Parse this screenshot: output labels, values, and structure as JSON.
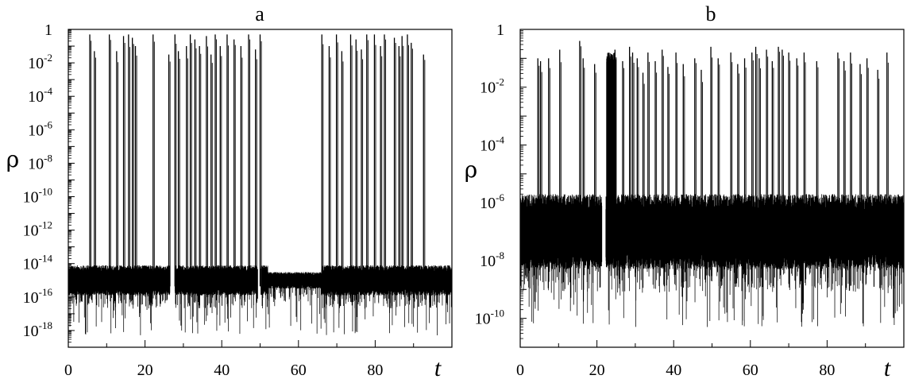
{
  "chart_data": [
    {
      "type": "line",
      "title": "a",
      "xlabel": "t",
      "ylabel": "ρ",
      "xlim": [
        0,
        100
      ],
      "ylim": [
        1e-19,
        1
      ],
      "yscale": "log",
      "grid": false,
      "x_ticks": [
        0,
        20,
        40,
        60,
        80
      ],
      "x_tick_labels": [
        "0",
        "20",
        "40",
        "60",
        "80"
      ],
      "y_ticks": [
        {
          "base": "10",
          "exp": "-18",
          "value": 1e-18
        },
        {
          "base": "10",
          "exp": "-16",
          "value": 1e-16
        },
        {
          "base": "10",
          "exp": "-14",
          "value": 1e-14
        },
        {
          "base": "10",
          "exp": "-12",
          "value": 1e-12
        },
        {
          "base": "10",
          "exp": "-10",
          "value": 1e-10
        },
        {
          "base": "10",
          "exp": "-8",
          "value": 1e-08
        },
        {
          "base": "10",
          "exp": "-6",
          "value": 1e-06
        },
        {
          "base": "10",
          "exp": "-4",
          "value": 0.0001
        },
        {
          "base": "10",
          "exp": "-2",
          "value": 0.01
        },
        {
          "base": "1",
          "exp": "",
          "value": 1
        }
      ],
      "baseline": {
        "center_exp": -15.0,
        "half_width_exp": 0.9,
        "lower_tail_exp": -18.3,
        "upper_edge_exp": -13.8
      },
      "quiet_intervals": [
        [
          52,
          66
        ]
      ],
      "gaps": [
        [
          26.5,
          27.8
        ],
        [
          49.4,
          50.2
        ]
      ],
      "bursts": [
        {
          "t": 5.6,
          "peak_exp": -0.3
        },
        {
          "t": 6.8,
          "peak_exp": -1.3
        },
        {
          "t": 10.7,
          "peak_exp": -0.3
        },
        {
          "t": 12.6,
          "peak_exp": -1.3
        },
        {
          "t": 14.4,
          "peak_exp": -0.4
        },
        {
          "t": 15.7,
          "peak_exp": -0.3
        },
        {
          "t": 16.7,
          "peak_exp": -0.5
        },
        {
          "t": 17.5,
          "peak_exp": -1.0
        },
        {
          "t": 22.1,
          "peak_exp": -0.3
        },
        {
          "t": 26.2,
          "peak_exp": -1.5
        },
        {
          "t": 27.8,
          "peak_exp": -0.3
        },
        {
          "t": 28.7,
          "peak_exp": -1.3
        },
        {
          "t": 30.8,
          "peak_exp": -1.0
        },
        {
          "t": 31.8,
          "peak_exp": -0.3
        },
        {
          "t": 33.0,
          "peak_exp": -0.6
        },
        {
          "t": 34.2,
          "peak_exp": -1.0
        },
        {
          "t": 36.0,
          "peak_exp": -0.4
        },
        {
          "t": 37.2,
          "peak_exp": -1.5
        },
        {
          "t": 38.3,
          "peak_exp": -0.3
        },
        {
          "t": 39.6,
          "peak_exp": -1.0
        },
        {
          "t": 41.4,
          "peak_exp": -0.3
        },
        {
          "t": 43.2,
          "peak_exp": -0.6
        },
        {
          "t": 45.0,
          "peak_exp": -1.0
        },
        {
          "t": 47.0,
          "peak_exp": -0.3
        },
        {
          "t": 48.8,
          "peak_exp": -1.2
        },
        {
          "t": 50.0,
          "peak_exp": -0.3
        },
        {
          "t": 66.1,
          "peak_exp": -0.3
        },
        {
          "t": 68.0,
          "peak_exp": -1.0
        },
        {
          "t": 69.9,
          "peak_exp": -0.3
        },
        {
          "t": 71.3,
          "peak_exp": -1.3
        },
        {
          "t": 73.6,
          "peak_exp": -0.3
        },
        {
          "t": 75.0,
          "peak_exp": -0.6
        },
        {
          "t": 76.4,
          "peak_exp": -1.2
        },
        {
          "t": 77.8,
          "peak_exp": -0.3
        },
        {
          "t": 79.8,
          "peak_exp": -0.3
        },
        {
          "t": 81.4,
          "peak_exp": -1.0
        },
        {
          "t": 82.4,
          "peak_exp": -0.3
        },
        {
          "t": 85.0,
          "peak_exp": -0.5
        },
        {
          "t": 86.2,
          "peak_exp": -1.0
        },
        {
          "t": 87.0,
          "peak_exp": -0.4
        },
        {
          "t": 88.4,
          "peak_exp": -0.3
        },
        {
          "t": 89.4,
          "peak_exp": -0.8
        },
        {
          "t": 92.6,
          "peak_exp": -1.5
        }
      ]
    },
    {
      "type": "line",
      "title": "b",
      "xlabel": "t",
      "ylabel": "ρ",
      "xlim": [
        0,
        100
      ],
      "ylim": [
        1e-11,
        1
      ],
      "yscale": "log",
      "grid": false,
      "x_ticks": [
        0,
        20,
        40,
        60,
        80
      ],
      "x_tick_labels": [
        "0",
        "20",
        "40",
        "60",
        "80"
      ],
      "y_ticks": [
        {
          "base": "10",
          "exp": "-10",
          "value": 1e-10
        },
        {
          "base": "10",
          "exp": "-8",
          "value": 1e-08
        },
        {
          "base": "10",
          "exp": "-6",
          "value": 1e-06
        },
        {
          "base": "10",
          "exp": "-4",
          "value": 0.0001
        },
        {
          "base": "10",
          "exp": "-2",
          "value": 0.01
        },
        {
          "base": "1",
          "exp": "",
          "value": 1
        }
      ],
      "baseline": {
        "center_exp": -7.0,
        "half_width_exp": 1.3,
        "lower_tail_exp": -10.3,
        "upper_edge_exp": -5.7
      },
      "quiet_intervals": [],
      "gaps": [
        [
          21.3,
          22.3
        ]
      ],
      "dense_burst_interval": [
        22.5,
        25.0
      ],
      "bursts": [
        {
          "t": 4.6,
          "peak_exp": -1.0
        },
        {
          "t": 5.3,
          "peak_exp": -1.1
        },
        {
          "t": 7.4,
          "peak_exp": -1.0
        },
        {
          "t": 10.3,
          "peak_exp": -0.7
        },
        {
          "t": 15.5,
          "peak_exp": -0.4
        },
        {
          "t": 16.4,
          "peak_exp": -1.0
        },
        {
          "t": 19.4,
          "peak_exp": -1.2
        },
        {
          "t": 24.7,
          "peak_exp": -0.7
        },
        {
          "t": 26.7,
          "peak_exp": -1.1
        },
        {
          "t": 28.5,
          "peak_exp": -0.6
        },
        {
          "t": 29.3,
          "peak_exp": -0.8
        },
        {
          "t": 30.5,
          "peak_exp": -1.0
        },
        {
          "t": 32.0,
          "peak_exp": -1.5
        },
        {
          "t": 33.3,
          "peak_exp": -0.8
        },
        {
          "t": 35.2,
          "peak_exp": -1.1
        },
        {
          "t": 37.0,
          "peak_exp": -0.7
        },
        {
          "t": 38.5,
          "peak_exp": -1.3
        },
        {
          "t": 40.6,
          "peak_exp": -0.8
        },
        {
          "t": 42.5,
          "peak_exp": -1.2
        },
        {
          "t": 45.5,
          "peak_exp": -1.0
        },
        {
          "t": 47.2,
          "peak_exp": -1.4
        },
        {
          "t": 49.7,
          "peak_exp": -0.6
        },
        {
          "t": 51.6,
          "peak_exp": -1.0
        },
        {
          "t": 54.9,
          "peak_exp": -0.8
        },
        {
          "t": 56.7,
          "peak_exp": -1.2
        },
        {
          "t": 58.5,
          "peak_exp": -1.0
        },
        {
          "t": 60.4,
          "peak_exp": -0.8
        },
        {
          "t": 61.4,
          "peak_exp": -0.6
        },
        {
          "t": 62.3,
          "peak_exp": -1.0
        },
        {
          "t": 64.2,
          "peak_exp": -0.7
        },
        {
          "t": 65.7,
          "peak_exp": -1.1
        },
        {
          "t": 67.3,
          "peak_exp": -0.6
        },
        {
          "t": 68.3,
          "peak_exp": -0.7
        },
        {
          "t": 70.0,
          "peak_exp": -0.8
        },
        {
          "t": 72.1,
          "peak_exp": -1.0
        },
        {
          "t": 74.0,
          "peak_exp": -0.8
        },
        {
          "t": 77.3,
          "peak_exp": -1.1
        },
        {
          "t": 82.8,
          "peak_exp": -0.8
        },
        {
          "t": 84.4,
          "peak_exp": -1.1
        },
        {
          "t": 86.1,
          "peak_exp": -0.8
        },
        {
          "t": 88.6,
          "peak_exp": -1.2
        },
        {
          "t": 90.4,
          "peak_exp": -1.0
        },
        {
          "t": 93.2,
          "peak_exp": -1.4
        },
        {
          "t": 95.6,
          "peak_exp": -0.8
        }
      ]
    }
  ]
}
